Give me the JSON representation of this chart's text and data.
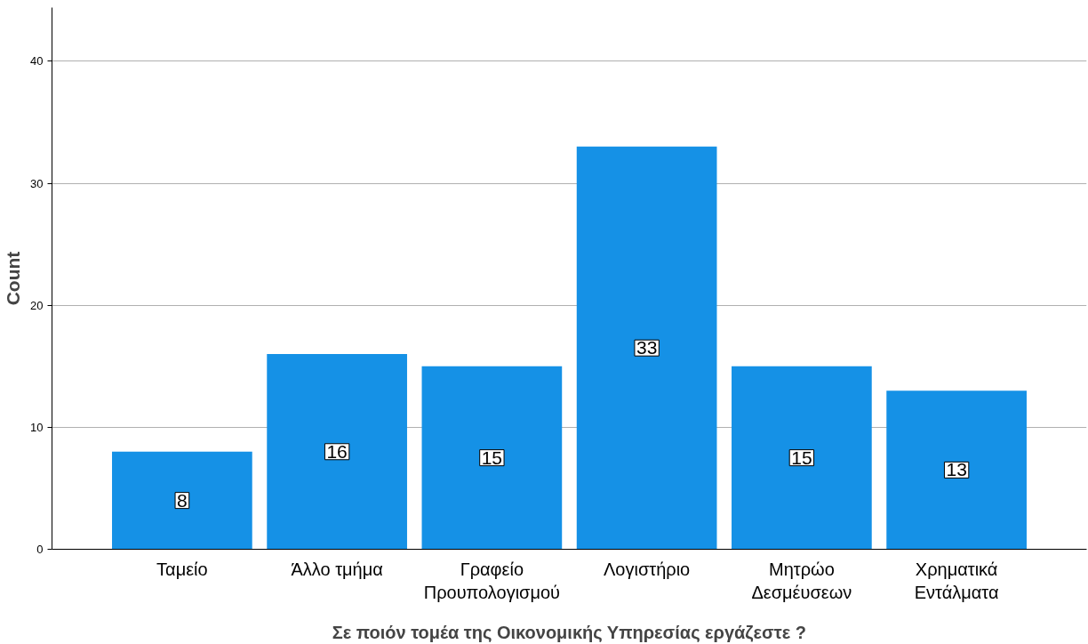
{
  "chart_data": {
    "type": "bar",
    "xlabel": "Σε ποιόν τομέα της Οικονομικής Υπηρεσίας εργάζεστε ?",
    "ylabel": "Count",
    "categories": [
      "Ταμείο",
      "Άλλο τμήμα",
      "Γραφείο\nΠρουπολογισμού",
      "Λογιστήριο",
      "Μητρώο\nΔεσμέυσεων",
      "Χρηματικά\nΕντάλματα"
    ],
    "values": [
      8,
      16,
      15,
      33,
      15,
      13
    ],
    "color": "#1591e6",
    "ylim": [
      0,
      44.4
    ],
    "yticks": [
      0,
      10,
      20,
      30,
      40
    ],
    "grid": "y",
    "data_labels": true
  }
}
